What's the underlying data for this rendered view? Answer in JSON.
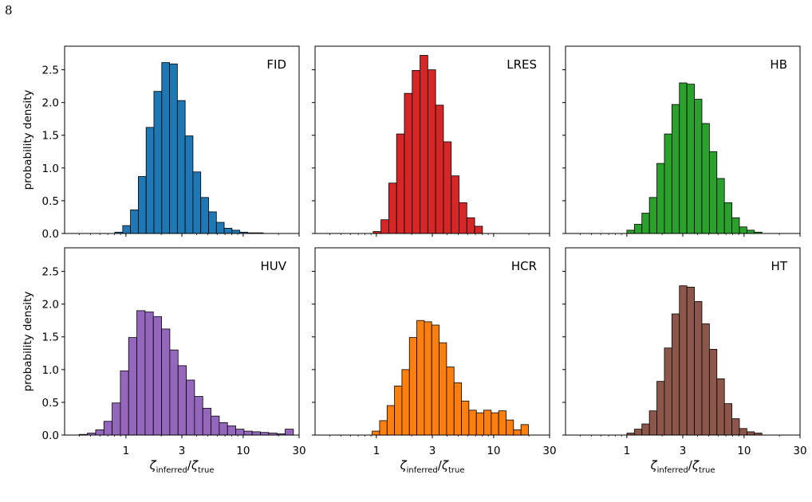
{
  "page_number": "8",
  "shared": {
    "ylabel": "probability density",
    "y_ticks": [
      "0.0",
      "0.5",
      "1.0",
      "1.5",
      "2.0",
      "2.5"
    ],
    "y_tick_values": [
      0,
      0.5,
      1.0,
      1.5,
      2.0,
      2.5
    ],
    "ylim": [
      0,
      2.86
    ],
    "x_scale": "log",
    "xlim": [
      0.3,
      30
    ],
    "x_ticks": [
      "1",
      "3",
      "10",
      "30"
    ],
    "x_tick_values": [
      1,
      3,
      10,
      30
    ],
    "xlabel_symbol": "ζ",
    "xlabel_sub_num": "inferred",
    "xlabel_sub_den": "true",
    "xlabel_sep": "/",
    "bar_edge_color": "#000000"
  },
  "chart_data": [
    {
      "type": "bar",
      "label": "FID",
      "color": "#1f77b4",
      "bin_edges": [
        0.805,
        0.939,
        1.094,
        1.276,
        1.487,
        1.733,
        2.021,
        2.356,
        2.746,
        3.201,
        3.731,
        4.349,
        5.069,
        5.909,
        6.888,
        8.03,
        9.36,
        10.91,
        12.72,
        14.83
      ],
      "values": [
        0.02,
        0.12,
        0.36,
        0.87,
        1.62,
        2.17,
        2.61,
        2.59,
        2.03,
        1.49,
        0.94,
        0.55,
        0.33,
        0.17,
        0.08,
        0.05,
        0.02,
        0.01,
        0.01
      ]
    },
    {
      "type": "bar",
      "label": "LRES",
      "color": "#d62728",
      "bin_edges": [
        0.939,
        1.094,
        1.276,
        1.487,
        1.733,
        2.021,
        2.356,
        2.746,
        3.201,
        3.731,
        4.349,
        5.069,
        5.909,
        6.888,
        8.03
      ],
      "values": [
        0.03,
        0.21,
        0.77,
        1.52,
        2.14,
        2.49,
        2.72,
        2.5,
        1.96,
        1.4,
        0.88,
        0.47,
        0.24,
        0.11
      ]
    },
    {
      "type": "bar",
      "label": "HB",
      "color": "#2ca02c",
      "bin_edges": [
        1.001,
        1.16,
        1.344,
        1.557,
        1.804,
        2.091,
        2.423,
        2.807,
        3.253,
        3.769,
        4.367,
        5.06,
        5.863,
        6.793,
        7.871,
        9.12,
        10.567,
        12.244,
        14.187
      ],
      "values": [
        0.05,
        0.14,
        0.31,
        0.55,
        1.07,
        1.52,
        1.97,
        2.3,
        2.28,
        2.05,
        1.68,
        1.25,
        0.84,
        0.47,
        0.24,
        0.1,
        0.05,
        0.02
      ]
    },
    {
      "type": "bar",
      "label": "HUV",
      "color": "#9467bd",
      "bin_edges": [
        0.399,
        0.469,
        0.552,
        0.649,
        0.763,
        0.897,
        1.054,
        1.239,
        1.457,
        1.713,
        2.014,
        2.368,
        2.784,
        3.273,
        3.848,
        4.524,
        5.318,
        6.252,
        7.35,
        8.641,
        10.159,
        11.943,
        14.041,
        16.507,
        19.406,
        22.814,
        26.821
      ],
      "values": [
        0.01,
        0.03,
        0.08,
        0.21,
        0.49,
        0.98,
        1.49,
        1.9,
        1.88,
        1.81,
        1.62,
        1.3,
        1.06,
        0.84,
        0.59,
        0.41,
        0.29,
        0.19,
        0.14,
        0.09,
        0.06,
        0.05,
        0.04,
        0.03,
        0.02,
        0.09
      ]
    },
    {
      "type": "bar",
      "label": "HCR",
      "color": "#ff7f0e",
      "bin_edges": [
        0.921,
        1.066,
        1.234,
        1.428,
        1.652,
        1.912,
        2.213,
        2.561,
        2.964,
        3.43,
        3.97,
        4.594,
        5.317,
        6.153,
        7.121,
        8.241,
        9.537,
        11.037,
        12.773,
        14.782,
        17.107,
        19.798
      ],
      "values": [
        0.06,
        0.22,
        0.45,
        0.75,
        1.0,
        1.49,
        1.75,
        1.73,
        1.68,
        1.41,
        1.04,
        0.8,
        0.52,
        0.38,
        0.34,
        0.38,
        0.34,
        0.37,
        0.23,
        0.08,
        0.16
      ]
    },
    {
      "type": "bar",
      "label": "HT",
      "color": "#8c564b",
      "bin_edges": [
        1.001,
        1.16,
        1.344,
        1.557,
        1.804,
        2.091,
        2.423,
        2.807,
        3.253,
        3.769,
        4.367,
        5.06,
        5.863,
        6.793,
        7.871,
        9.12,
        10.567,
        12.244,
        14.187
      ],
      "values": [
        0.03,
        0.09,
        0.17,
        0.37,
        0.82,
        1.33,
        1.85,
        2.28,
        2.26,
        2.04,
        1.7,
        1.31,
        0.86,
        0.48,
        0.25,
        0.1,
        0.05,
        0.03
      ]
    }
  ]
}
